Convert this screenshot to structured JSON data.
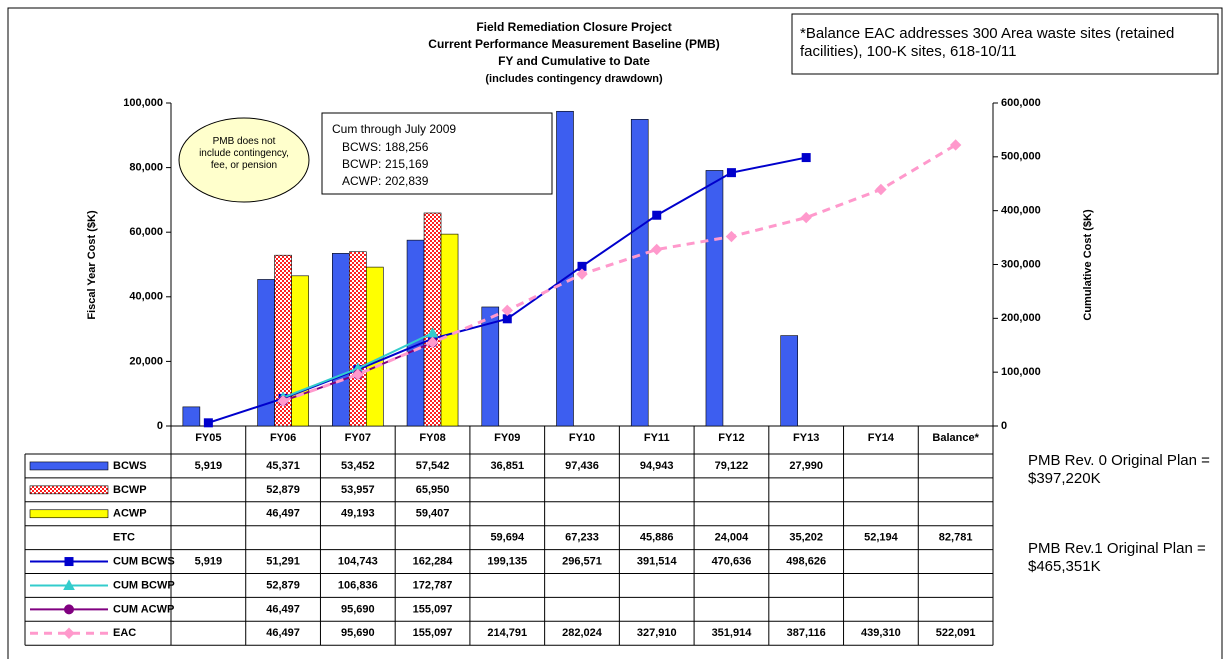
{
  "chart_data": {
    "type": "combo",
    "title": [
      "Field Remediation Closure Project",
      "Current Performance Measurement Baseline (PMB)",
      "FY and Cumulative to Date",
      "(includes contingency drawdown)"
    ],
    "y_label": "Fiscal Year Cost ($K)",
    "y2_label": "Cumulative Cost ($K)",
    "categories": [
      "FY05",
      "FY06",
      "FY07",
      "FY08",
      "FY09",
      "FY10",
      "FY11",
      "FY12",
      "FY13",
      "FY14",
      "Balance*"
    ],
    "ylim": [
      0,
      100000
    ],
    "yticks": [
      0,
      {
        "value": 20000,
        "label": "20,000"
      },
      {
        "value": 40000,
        "label": "40,000"
      },
      {
        "value": 60000,
        "label": "60,000"
      },
      {
        "value": 80000,
        "label": "80,000"
      },
      {
        "value": 100000,
        "label": "100,000"
      }
    ],
    "y2lim": [
      0,
      600000
    ],
    "y2ticks": [
      0,
      {
        "value": 100000,
        "label": "100,000"
      },
      {
        "value": 200000,
        "label": "200,000"
      },
      {
        "value": 300000,
        "label": "300,000"
      },
      {
        "value": 400000,
        "label": "400,000"
      },
      {
        "value": 500000,
        "label": "500,000"
      },
      {
        "value": 600000,
        "label": "600,000"
      }
    ],
    "series": [
      {
        "name": "BCWS",
        "style": "bar",
        "color": "#3d5ef0",
        "values": [
          5919,
          45371,
          53452,
          57542,
          36851,
          97436,
          94943,
          79122,
          27990,
          null,
          null
        ],
        "value_labels": [
          "5,919",
          "45,371",
          "53,452",
          "57,542",
          "36,851",
          "97,436",
          "94,943",
          "79,122",
          "27,990",
          null,
          null
        ]
      },
      {
        "name": "BCWP",
        "style": "bar",
        "color": "#ff2020",
        "pattern": "checker",
        "values": [
          null,
          52879,
          53957,
          65950,
          null,
          null,
          null,
          null,
          null,
          null,
          null
        ],
        "value_labels": [
          null,
          "52,879",
          "53,957",
          "65,950",
          null,
          null,
          null,
          null,
          null,
          null,
          null
        ]
      },
      {
        "name": "ACWP",
        "style": "bar",
        "color": "#ffff00",
        "values": [
          null,
          46497,
          49193,
          59407,
          null,
          null,
          null,
          null,
          null,
          null,
          null
        ],
        "value_labels": [
          null,
          "46,497",
          "49,193",
          "59,407",
          null,
          null,
          null,
          null,
          null,
          null,
          null
        ]
      },
      {
        "name": "ETC",
        "style": "none",
        "values": [
          null,
          null,
          null,
          null,
          59694,
          67233,
          45886,
          24004,
          35202,
          52194,
          82781
        ],
        "value_labels": [
          null,
          null,
          null,
          null,
          "59,694",
          "67,233",
          "45,886",
          "24,004",
          "35,202",
          "52,194",
          "82,781"
        ]
      },
      {
        "name": "CUM BCWS",
        "style": "line",
        "axis": "y2",
        "color": "#0000cc",
        "marker": "square",
        "values": [
          5919,
          51291,
          104743,
          162284,
          199135,
          296571,
          391514,
          470636,
          498626,
          null,
          null
        ],
        "value_labels": [
          "5,919",
          "51,291",
          "104,743",
          "162,284",
          "199,135",
          "296,571",
          "391,514",
          "470,636",
          "498,626",
          null,
          null
        ]
      },
      {
        "name": "CUM BCWP",
        "style": "line",
        "axis": "y2",
        "color": "#33cccc",
        "marker": "triangle",
        "values": [
          null,
          52879,
          106836,
          172787,
          null,
          null,
          null,
          null,
          null,
          null,
          null
        ],
        "value_labels": [
          null,
          "52,879",
          "106,836",
          "172,787",
          null,
          null,
          null,
          null,
          null,
          null,
          null
        ]
      },
      {
        "name": "CUM ACWP",
        "style": "line",
        "axis": "y2",
        "color": "#800080",
        "marker": "circle",
        "values": [
          null,
          46497,
          95690,
          155097,
          null,
          null,
          null,
          null,
          null,
          null,
          null
        ],
        "value_labels": [
          null,
          "46,497",
          "95,690",
          "155,097",
          null,
          null,
          null,
          null,
          null,
          null,
          null
        ]
      },
      {
        "name": "EAC",
        "style": "line",
        "axis": "y2",
        "color": "#ff99cc",
        "marker": "diamond",
        "dashed": true,
        "values": [
          null,
          46497,
          95690,
          155097,
          214791,
          282024,
          327910,
          351914,
          387116,
          439310,
          522091
        ],
        "value_labels": [
          null,
          "46,497",
          "95,690",
          "155,097",
          "214,791",
          "282,024",
          "327,910",
          "351,914",
          "387,116",
          "439,310",
          "522,091"
        ]
      }
    ],
    "annotations": {
      "balance_note": "*Balance EAC addresses 300 Area waste sites (retained facilities), 100-K sites, 618-10/11",
      "ellipse_note": "PMB does not include contingency, fee, or pension",
      "cum_box": {
        "title": "Cum through July 2009",
        "rows": [
          [
            "BCWS:",
            "188,256"
          ],
          [
            "BCWP:",
            "215,169"
          ],
          [
            "ACWP:",
            "202,839"
          ]
        ]
      },
      "rev0": "PMB Rev. 0 Original Plan = $397,220K",
      "rev1": "PMB Rev.1 Original Plan = $465,351K"
    }
  }
}
